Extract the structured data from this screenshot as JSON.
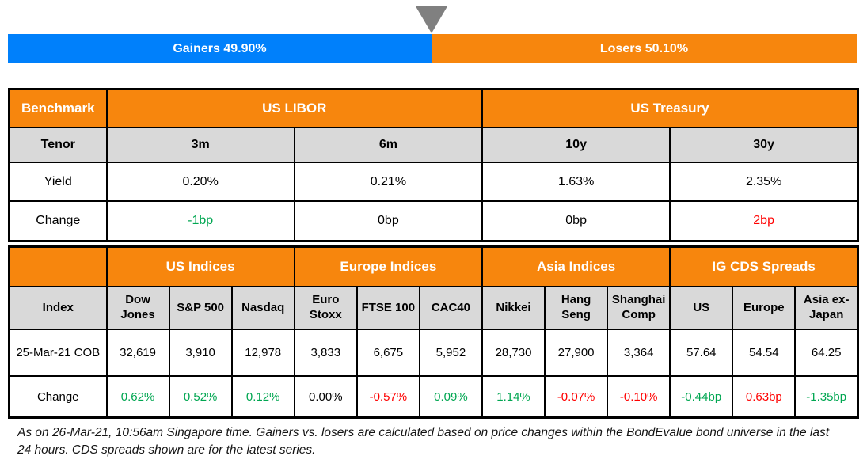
{
  "colors": {
    "gainers_blue": "#0080FB",
    "losers_orange": "#F7860D",
    "header_orange": "#F7860D",
    "subheader_gray": "#D9D9D9",
    "pointer_gray": "#808080",
    "positive_green": "#00A651",
    "negative_red": "#FF0000",
    "neutral_black": "#000000"
  },
  "gauge": {
    "gainers": {
      "label": "Gainers 49.90%",
      "pct": 49.9
    },
    "losers": {
      "label": "Losers 50.10%",
      "pct": 50.1
    }
  },
  "benchmark_table": {
    "corner_label": "Benchmark",
    "groups": [
      {
        "label": "US LIBOR"
      },
      {
        "label": "US Treasury"
      }
    ],
    "tenor_row": {
      "label": "Tenor",
      "values": [
        "3m",
        "6m",
        "10y",
        "30y"
      ]
    },
    "yield_row": {
      "label": "Yield",
      "values": [
        "0.20%",
        "0.21%",
        "1.63%",
        "2.35%"
      ]
    },
    "change_row": {
      "label": "Change",
      "values": [
        {
          "text": "-1bp",
          "color": "#00A651"
        },
        {
          "text": "0bp",
          "color": "#000000"
        },
        {
          "text": "0bp",
          "color": "#000000"
        },
        {
          "text": "2bp",
          "color": "#FF0000"
        }
      ]
    }
  },
  "indices_table": {
    "corner_label": "",
    "groups": [
      {
        "label": "US Indices"
      },
      {
        "label": "Europe Indices"
      },
      {
        "label": "Asia Indices"
      },
      {
        "label": "IG CDS Spreads"
      }
    ],
    "header_row": {
      "label": "Index",
      "values": [
        "Dow Jones",
        "S&P 500",
        "Nasdaq",
        "Euro Stoxx",
        "FTSE 100",
        "CAC40",
        "Nikkei",
        "Hang Seng",
        "Shanghai Comp",
        "US",
        "Europe",
        "Asia ex-Japan"
      ]
    },
    "cob_row": {
      "label": "25-Mar-21 COB",
      "values": [
        "32,619",
        "3,910",
        "12,978",
        "3,833",
        "6,675",
        "5,952",
        "28,730",
        "27,900",
        "3,364",
        "57.64",
        "54.54",
        "64.25"
      ]
    },
    "change_row": {
      "label": "Change",
      "values": [
        {
          "text": "0.62%",
          "color": "#00A651"
        },
        {
          "text": "0.52%",
          "color": "#00A651"
        },
        {
          "text": "0.12%",
          "color": "#00A651"
        },
        {
          "text": "0.00%",
          "color": "#000000"
        },
        {
          "text": "-0.57%",
          "color": "#FF0000"
        },
        {
          "text": "0.09%",
          "color": "#00A651"
        },
        {
          "text": "1.14%",
          "color": "#00A651"
        },
        {
          "text": "-0.07%",
          "color": "#FF0000"
        },
        {
          "text": "-0.10%",
          "color": "#FF0000"
        },
        {
          "text": "-0.44bp",
          "color": "#00A651"
        },
        {
          "text": "0.63bp",
          "color": "#FF0000"
        },
        {
          "text": "-1.35bp",
          "color": "#00A651"
        }
      ]
    }
  },
  "footnote": "As on 26-Mar-21, 10:56am Singapore time. Gainers vs. losers are calculated based on price changes within the BondEvalue bond universe in the last 24 hours. CDS spreads shown are for the latest series.",
  "chart_data": [
    {
      "type": "bar",
      "title": "Gainers vs Losers",
      "categories": [
        "Gainers",
        "Losers"
      ],
      "values": [
        49.9,
        50.1
      ],
      "unit": "%",
      "layout": "single stacked horizontal bar with gray down-arrow marker at split",
      "colors": [
        "#0080FB",
        "#F7860D"
      ]
    },
    {
      "type": "table",
      "title": "Benchmark",
      "column_groups": [
        {
          "label": "US LIBOR",
          "columns": [
            "3m",
            "6m"
          ]
        },
        {
          "label": "US Treasury",
          "columns": [
            "10y",
            "30y"
          ]
        }
      ],
      "columns": [
        "Tenor",
        "3m",
        "6m",
        "10y",
        "30y"
      ],
      "rows": [
        [
          "Yield",
          "0.20%",
          "0.21%",
          "1.63%",
          "2.35%"
        ],
        [
          "Change",
          "-1bp",
          "0bp",
          "0bp",
          "2bp"
        ]
      ]
    },
    {
      "type": "table",
      "title": "Indices and IG CDS Spreads",
      "column_groups": [
        {
          "label": "US Indices",
          "columns": [
            "Dow Jones",
            "S&P 500",
            "Nasdaq"
          ]
        },
        {
          "label": "Europe Indices",
          "columns": [
            "Euro Stoxx",
            "FTSE 100",
            "CAC40"
          ]
        },
        {
          "label": "Asia Indices",
          "columns": [
            "Nikkei",
            "Hang Seng",
            "Shanghai Comp"
          ]
        },
        {
          "label": "IG CDS Spreads",
          "columns": [
            "US",
            "Europe",
            "Asia ex-Japan"
          ]
        }
      ],
      "columns": [
        "Index",
        "Dow Jones",
        "S&P 500",
        "Nasdaq",
        "Euro Stoxx",
        "FTSE 100",
        "CAC40",
        "Nikkei",
        "Hang Seng",
        "Shanghai Comp",
        "US",
        "Europe",
        "Asia ex-Japan"
      ],
      "rows": [
        [
          "25-Mar-21 COB",
          "32,619",
          "3,910",
          "12,978",
          "3,833",
          "6,675",
          "5,952",
          "28,730",
          "27,900",
          "3,364",
          "57.64",
          "54.54",
          "64.25"
        ],
        [
          "Change",
          "0.62%",
          "0.52%",
          "0.12%",
          "0.00%",
          "-0.57%",
          "0.09%",
          "1.14%",
          "-0.07%",
          "-0.10%",
          "-0.44bp",
          "0.63bp",
          "-1.35bp"
        ]
      ]
    }
  ]
}
